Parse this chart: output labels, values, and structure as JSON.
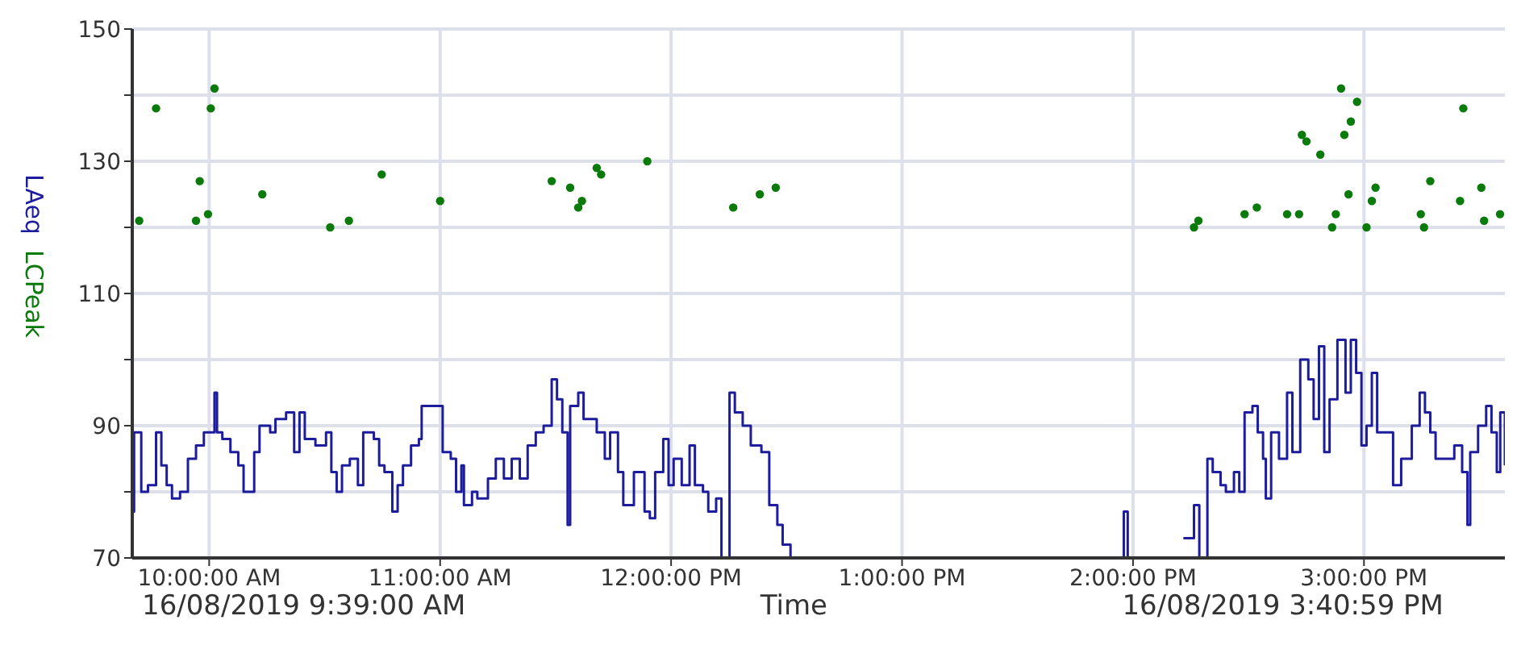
{
  "chart_data": {
    "type": "line",
    "xlabel": "Time",
    "annotations": [
      "16/08/2019 9:39:00 AM",
      "16/08/2019 3:40:59 PM"
    ],
    "xlim": [
      9.667,
      15.61
    ],
    "xticks": [
      {
        "value": 10,
        "label": "10:00:00 AM"
      },
      {
        "value": 11,
        "label": "11:00:00 AM"
      },
      {
        "value": 12,
        "label": "12:00:00 PM"
      },
      {
        "value": 13,
        "label": "1:00:00 PM"
      },
      {
        "value": 14,
        "label": "2:00:00 PM"
      },
      {
        "value": 15,
        "label": "3:00:00 PM"
      }
    ],
    "ylim": [
      70,
      150
    ],
    "yticks": [
      70,
      {
        "value": 80,
        "label": null
      },
      90,
      {
        "value": 100,
        "label": null
      },
      110,
      {
        "value": 120,
        "label": null
      },
      130,
      {
        "value": 140,
        "label": null
      },
      150
    ],
    "grid": true,
    "legend": false,
    "series": [
      {
        "name": "LAeq",
        "type": "step",
        "color": "#1c1c9c",
        "marker": "none",
        "line_style": "solid",
        "x": [
          9.667,
          9.675,
          9.706,
          9.735,
          9.77,
          9.793,
          9.816,
          9.839,
          9.874,
          9.908,
          9.943,
          9.977,
          10.023,
          10.034,
          10.057,
          10.092,
          10.126,
          10.149,
          10.195,
          10.218,
          10.264,
          10.287,
          10.333,
          10.368,
          10.391,
          10.414,
          10.46,
          10.506,
          10.529,
          10.552,
          10.575,
          10.609,
          10.644,
          10.667,
          10.713,
          10.736,
          10.759,
          10.793,
          10.816,
          10.839,
          10.874,
          10.908,
          10.92,
          10.966,
          11.011,
          11.046,
          11.069,
          11.092,
          11.103,
          11.138,
          11.161,
          11.207,
          11.241,
          11.276,
          11.31,
          11.345,
          11.379,
          11.414,
          11.448,
          11.483,
          11.506,
          11.529,
          11.552,
          11.563,
          11.598,
          11.621,
          11.678,
          11.713,
          11.736,
          11.77,
          11.793,
          11.839,
          11.885,
          11.908,
          11.931,
          11.966,
          11.989,
          12.011,
          12.046,
          12.08,
          12.103,
          12.138,
          12.161,
          12.195,
          12.218,
          12.253,
          12.276,
          12.31,
          12.345,
          12.391,
          12.425,
          12.46,
          12.483,
          12.517,
          12.53,
          13.954,
          13.96,
          13.977,
          13.995,
          14.17,
          14.218,
          14.264,
          14.287,
          14.322,
          14.345,
          14.379,
          14.402,
          14.437,
          14.46,
          14.483,
          14.517,
          14.54,
          14.563,
          14.575,
          14.598,
          14.632,
          14.667,
          14.69,
          14.724,
          14.759,
          14.782,
          14.805,
          14.828,
          14.851,
          14.885,
          14.92,
          14.943,
          14.966,
          14.989,
          15.011,
          15.034,
          15.057,
          15.08,
          15.126,
          15.161,
          15.207,
          15.241,
          15.264,
          15.287,
          15.31,
          15.356,
          15.391,
          15.425,
          15.448,
          15.46,
          15.494,
          15.529,
          15.552,
          15.575,
          15.59,
          15.61
        ],
        "values": [
          77,
          89,
          80,
          81,
          89,
          84,
          81,
          79,
          80,
          85,
          87,
          89,
          95,
          89,
          88,
          86,
          84,
          80,
          86,
          90,
          89,
          91,
          92,
          86,
          92,
          88,
          87,
          89,
          83,
          80,
          84,
          85,
          81,
          89,
          88,
          84,
          83,
          77,
          81,
          84,
          87,
          88,
          93,
          93,
          86,
          85,
          80,
          84,
          78,
          80,
          79,
          82,
          85,
          82,
          85,
          82,
          87,
          89,
          90,
          97,
          94,
          89,
          75,
          93,
          95,
          91,
          89,
          85,
          89,
          83,
          78,
          83,
          77,
          76,
          83,
          88,
          81,
          85,
          81,
          87,
          81,
          80,
          77,
          79,
          70,
          95,
          92,
          90,
          87,
          86,
          78,
          75,
          72,
          70,
          null,
          70,
          77,
          70,
          null,
          null,
          73,
          78,
          70,
          85,
          83,
          81,
          80,
          83,
          80,
          92,
          93,
          89,
          85,
          79,
          89,
          85,
          95,
          86,
          100,
          97,
          91,
          102,
          86,
          94,
          103,
          95,
          103,
          98,
          87,
          90,
          98,
          89,
          89,
          81,
          85,
          90,
          95,
          92,
          89,
          85,
          85,
          87,
          83,
          75,
          86,
          90,
          93,
          89,
          83,
          92,
          84
        ]
      },
      {
        "name": "LCPeak",
        "type": "scatter",
        "color": "#0a7a0a",
        "marker": "circle",
        "x": [
          9.697,
          9.77,
          9.943,
          9.959,
          9.995,
          10.007,
          10.023,
          10.23,
          10.524,
          10.605,
          10.747,
          11.0,
          11.483,
          11.563,
          11.598,
          11.614,
          11.678,
          11.697,
          11.897,
          12.269,
          12.384,
          12.453,
          14.264,
          14.283,
          14.483,
          14.536,
          14.667,
          14.719,
          14.731,
          14.751,
          14.811,
          14.862,
          14.878,
          14.901,
          14.915,
          14.933,
          14.943,
          14.97,
          15.011,
          15.034,
          15.05,
          15.246,
          15.26,
          15.287,
          15.416,
          15.43,
          15.508,
          15.52,
          15.589
        ],
        "values": [
          121,
          138,
          121,
          127,
          122,
          138,
          141,
          125,
          120,
          121,
          128,
          124,
          127,
          126,
          123,
          124,
          129,
          128,
          130,
          123,
          125,
          126,
          120,
          121,
          122,
          123,
          122,
          122,
          134,
          133,
          131,
          120,
          122,
          141,
          134,
          125,
          136,
          139,
          120,
          124,
          126,
          122,
          120,
          127,
          124,
          138,
          126,
          121,
          122
        ]
      }
    ]
  }
}
